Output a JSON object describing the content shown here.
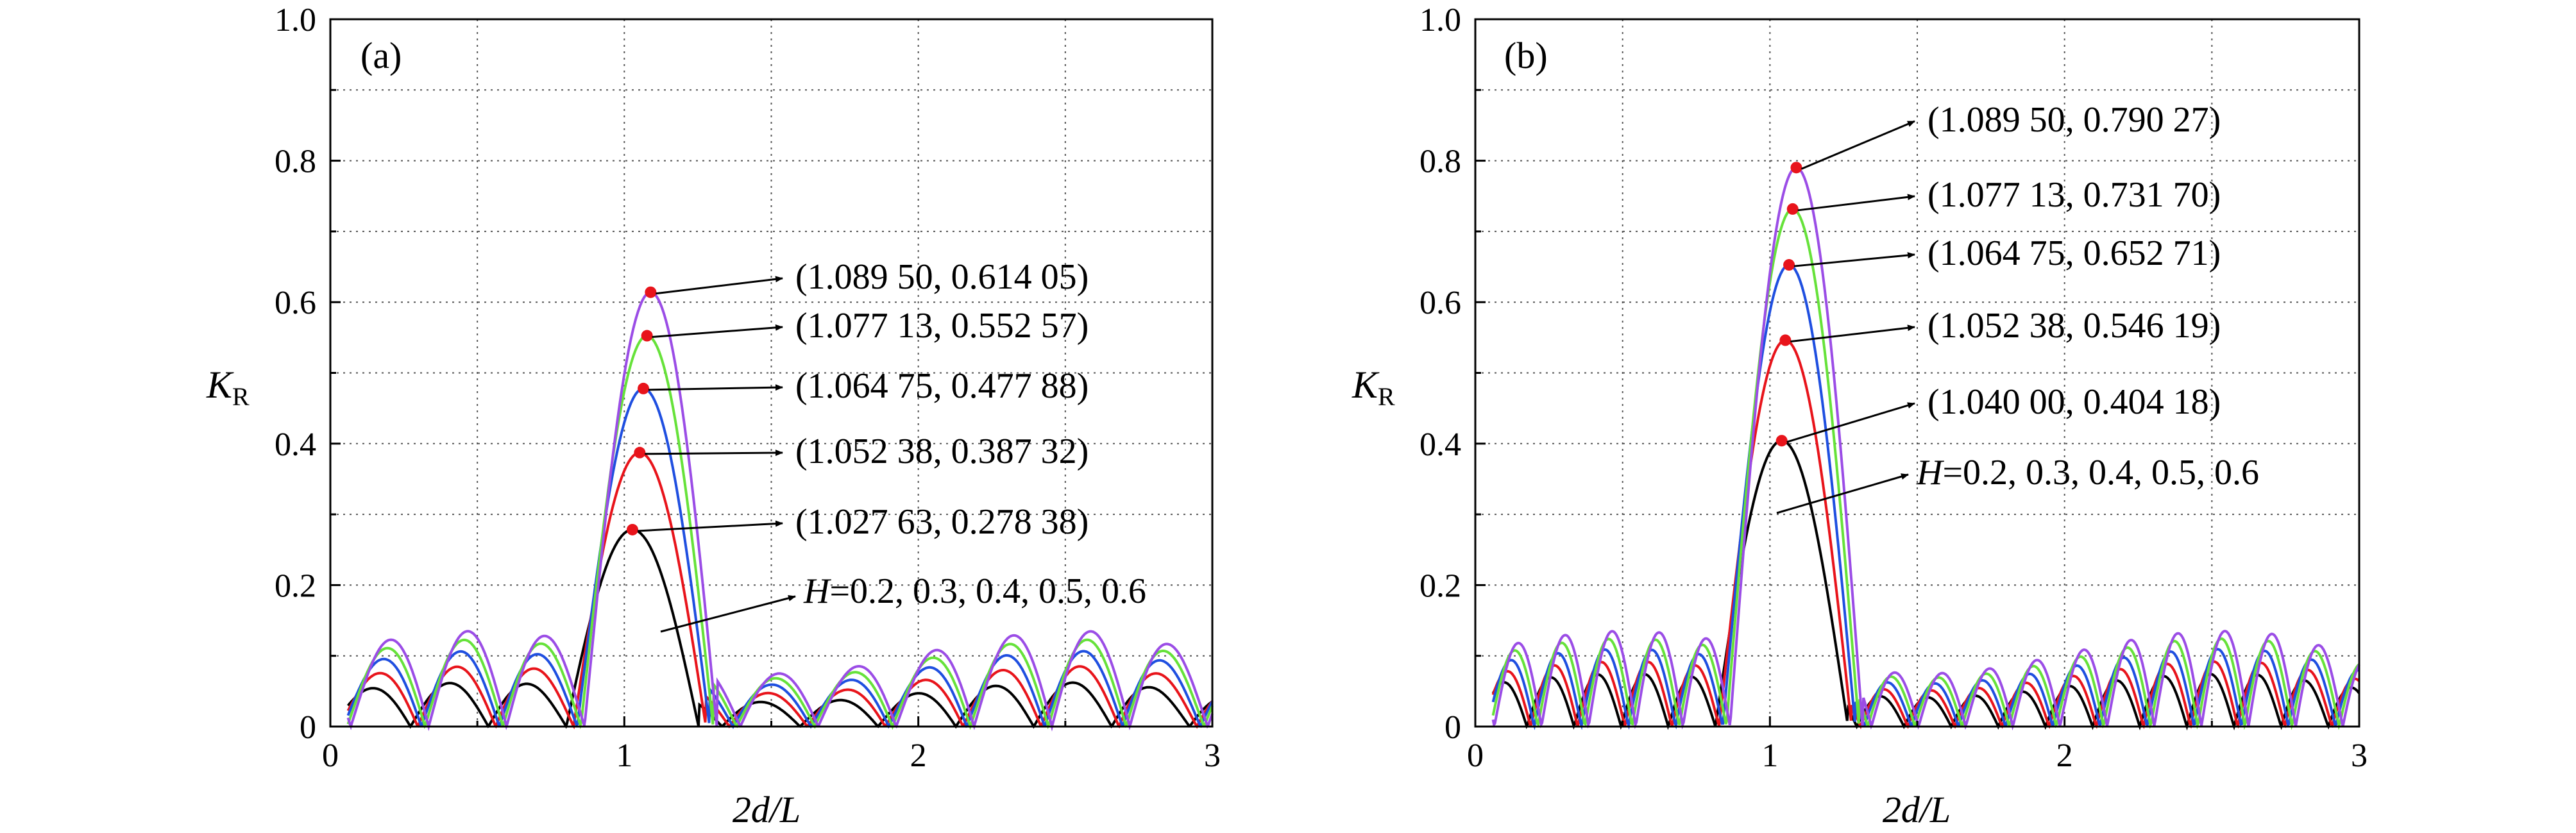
{
  "chart_data": [
    {
      "type": "line",
      "panel_label": "(a)",
      "xlabel": "2d/L",
      "ylabel": "K",
      "ylabel_sub": "R",
      "xlim": [
        0,
        3
      ],
      "ylim": [
        0,
        1.0
      ],
      "xticks": [
        "0",
        "1",
        "2",
        "3"
      ],
      "yticks": [
        "0",
        "0.2",
        "0.4",
        "0.6",
        "0.8",
        "1.0"
      ],
      "grid": true,
      "legend": "none",
      "series_note": "H=0.2, 0.3, 0.4, 0.5, 0.6",
      "series": [
        {
          "H": 0.2,
          "color": "#000000",
          "peak": [
            1.02763,
            0.27838
          ],
          "side_scale": 0.46,
          "period": 0.265
        },
        {
          "H": 0.3,
          "color": "#e8141b",
          "peak": [
            1.05238,
            0.38732
          ],
          "side_scale": 0.63,
          "period": 0.265
        },
        {
          "H": 0.4,
          "color": "#1f4fe0",
          "peak": [
            1.06475,
            0.47788
          ],
          "side_scale": 0.79,
          "period": 0.265
        },
        {
          "H": 0.5,
          "color": "#66e23a",
          "peak": [
            1.07713,
            0.55257
          ],
          "side_scale": 0.91,
          "period": 0.265
        },
        {
          "H": 0.6,
          "color": "#9b4de6",
          "peak": [
            1.0895,
            0.61405
          ],
          "side_scale": 1.0,
          "period": 0.265
        }
      ],
      "annotations": [
        {
          "text": "(1.089 50, 0.614 05)",
          "x": 1.0895,
          "y": 0.61405
        },
        {
          "text": "(1.077 13, 0.552 57)",
          "x": 1.07713,
          "y": 0.55257
        },
        {
          "text": "(1.064 75, 0.477 88)",
          "x": 1.06475,
          "y": 0.47788
        },
        {
          "text": "(1.052 38, 0.387 32)",
          "x": 1.05238,
          "y": 0.38732
        },
        {
          "text": "(1.027 63, 0.278 38)",
          "x": 1.02763,
          "y": 0.27838
        }
      ],
      "h_label_parts": [
        "H",
        "=0.2, 0.3, 0.4, 0.5, 0.6"
      ]
    },
    {
      "type": "line",
      "panel_label": "(b)",
      "xlabel": "2d/L",
      "ylabel": "K",
      "ylabel_sub": "R",
      "xlim": [
        0,
        3
      ],
      "ylim": [
        0,
        1.0
      ],
      "xticks": [
        "0",
        "1",
        "2",
        "3"
      ],
      "yticks": [
        "0",
        "0.2",
        "0.4",
        "0.6",
        "0.8",
        "1.0"
      ],
      "grid": true,
      "legend": "none",
      "series_note": "H=0.2, 0.3, 0.4, 0.5, 0.6",
      "series": [
        {
          "H": 0.2,
          "color": "#000000",
          "peak": [
            1.04,
            0.40418
          ],
          "side_scale": 0.55,
          "period": 0.16
        },
        {
          "H": 0.3,
          "color": "#e8141b",
          "peak": [
            1.05238,
            0.54619
          ],
          "side_scale": 0.68,
          "period": 0.16
        },
        {
          "H": 0.4,
          "color": "#1f4fe0",
          "peak": [
            1.06475,
            0.65271
          ],
          "side_scale": 0.81,
          "period": 0.16
        },
        {
          "H": 0.5,
          "color": "#66e23a",
          "peak": [
            1.07713,
            0.7317
          ],
          "side_scale": 0.92,
          "period": 0.16
        },
        {
          "H": 0.6,
          "color": "#9b4de6",
          "peak": [
            1.0895,
            0.79027
          ],
          "side_scale": 1.0,
          "period": 0.16
        }
      ],
      "annotations": [
        {
          "text": "(1.089 50, 0.790 27)",
          "x": 1.0895,
          "y": 0.79027
        },
        {
          "text": "(1.077 13, 0.731 70)",
          "x": 1.07713,
          "y": 0.7317
        },
        {
          "text": "(1.064 75, 0.652 71)",
          "x": 1.06475,
          "y": 0.65271
        },
        {
          "text": "(1.052 38, 0.546 19)",
          "x": 1.05238,
          "y": 0.54619
        },
        {
          "text": "(1.040 00, 0.404 18)",
          "x": 1.04,
          "y": 0.40418
        }
      ],
      "h_label_parts": [
        "H",
        "=0.2, 0.3, 0.4, 0.5, 0.6"
      ]
    }
  ],
  "colors": {
    "axis": "#000000",
    "grid": "#555555",
    "peak_marker": "#e8141b",
    "arrow": "#000000"
  }
}
